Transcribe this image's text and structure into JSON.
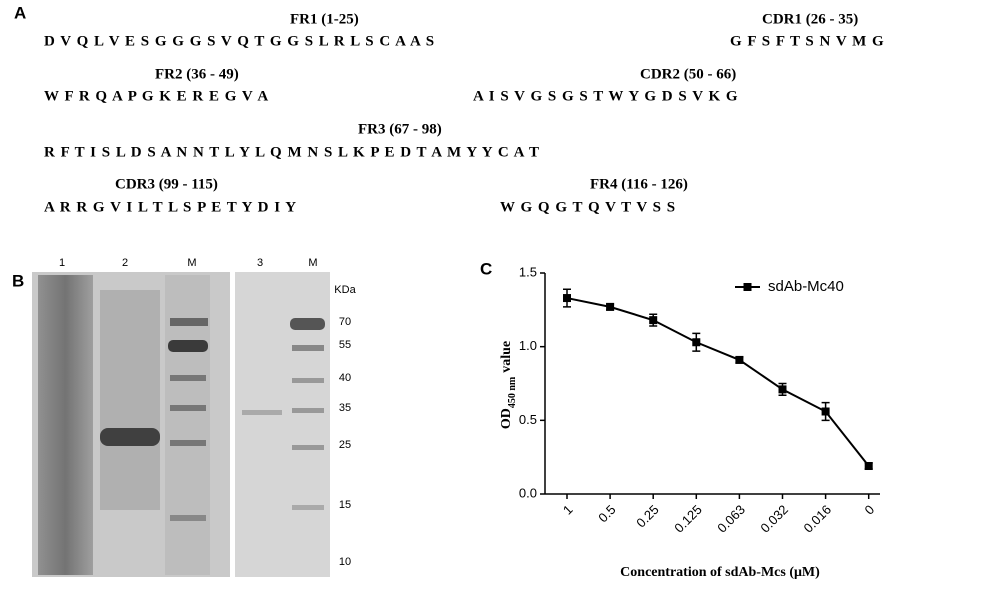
{
  "panel_a": {
    "label": "A",
    "rows": [
      [
        {
          "header": "FR1 (1-25)",
          "sequence": "D V Q L V E S G G G S V Q T G G S L R L S C A A S"
        },
        {
          "header": "CDR1 (26 - 35)",
          "sequence": "G F S F T S N V M G"
        }
      ],
      [
        {
          "header": "FR2 (36 - 49)",
          "sequence": "W F R Q A P G K E R E G V A"
        },
        {
          "header": "CDR2 (50 - 66)",
          "sequence": "A I S V G S G S T W Y G D S V K G"
        }
      ],
      [
        {
          "header": "FR3 (67 - 98)",
          "sequence": "R F T I S L D S A N N T L Y L Q M N S L K P E D T A M Y Y C A T"
        }
      ],
      [
        {
          "header": "CDR3 (99 - 115)",
          "sequence": "A R R G V I L T L S P E T Y D I Y"
        },
        {
          "header": "FR4 (116 - 126)",
          "sequence": "W G Q G T Q V T V S S"
        }
      ]
    ]
  },
  "panel_b": {
    "label": "B",
    "lanes": [
      "1",
      "2",
      "M",
      "3",
      "M"
    ],
    "unit": "KDa",
    "markers": [
      "70",
      "55",
      "40",
      "35",
      "25",
      "15",
      "10"
    ]
  },
  "chart_data": {
    "type": "line",
    "panel_label": "C",
    "x_label": "Concentration of sdAb-Mcs (μM)",
    "y_label": [
      "OD",
      "450 nm",
      "value"
    ],
    "categories": [
      "1",
      "0.5",
      "0.25",
      "0.125",
      "0.063",
      "0.032",
      "0.016",
      "0"
    ],
    "series": [
      {
        "name": "sdAb-Mc40",
        "color": "#000000",
        "values": [
          1.33,
          1.27,
          1.18,
          1.03,
          0.91,
          0.71,
          0.56,
          0.19
        ],
        "errors": [
          0.06,
          0.02,
          0.04,
          0.06,
          0.02,
          0.04,
          0.06,
          0.02
        ]
      }
    ],
    "ylim": [
      0,
      1.5
    ],
    "yticks": [
      {
        "value": 0,
        "label": "0.0"
      },
      0.5,
      {
        "value": 1,
        "label": "1.0"
      },
      1.5
    ],
    "legend": "upper right"
  }
}
